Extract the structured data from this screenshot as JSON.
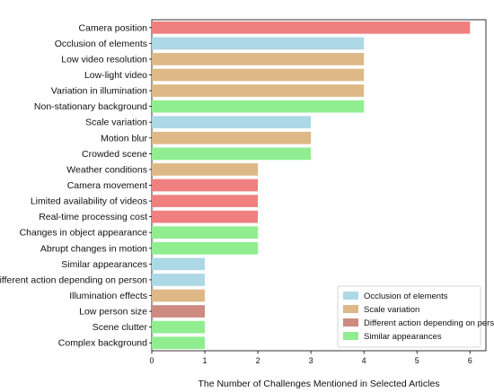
{
  "chart_data": {
    "type": "bar",
    "orientation": "horizontal",
    "xlabel": "The Number of Challenges Mentioned in Selected Articles",
    "xlim": [
      0,
      6.3
    ],
    "xticks": [
      0,
      1,
      2,
      3,
      4,
      5,
      6
    ],
    "grid": false,
    "legend_position": "bottom-right",
    "colors": {
      "blue": "#add8e6",
      "tan": "#deb887",
      "red": "#f08080",
      "green": "#90ee90"
    },
    "legend": [
      {
        "label": "Occlusion of elements",
        "color": "#add8e6"
      },
      {
        "label": "Scale variation",
        "color": "#deb887"
      },
      {
        "label": "Different action depending on person",
        "color": "#cd8a80"
      },
      {
        "label": "Similar appearances",
        "color": "#90ee90"
      }
    ],
    "bars": [
      {
        "category": "Camera position",
        "value": 6,
        "color": "#f08080"
      },
      {
        "category": "Occlusion of elements",
        "value": 4,
        "color": "#add8e6"
      },
      {
        "category": "Low video resolution",
        "value": 4,
        "color": "#deb887"
      },
      {
        "category": "Low-light video",
        "value": 4,
        "color": "#deb887"
      },
      {
        "category": "Variation in illumination",
        "value": 4,
        "color": "#deb887"
      },
      {
        "category": "Non-stationary background",
        "value": 4,
        "color": "#90ee90"
      },
      {
        "category": "Scale variation",
        "value": 3,
        "color": "#add8e6"
      },
      {
        "category": "Motion blur",
        "value": 3,
        "color": "#deb887"
      },
      {
        "category": "Crowded scene",
        "value": 3,
        "color": "#90ee90"
      },
      {
        "category": "Weather conditions",
        "value": 2,
        "color": "#deb887"
      },
      {
        "category": "Camera movement",
        "value": 2,
        "color": "#f08080"
      },
      {
        "category": "Limited availability of videos",
        "value": 2,
        "color": "#f08080"
      },
      {
        "category": "Real-time processing cost",
        "value": 2,
        "color": "#f08080"
      },
      {
        "category": "Changes in object appearance",
        "value": 2,
        "color": "#90ee90"
      },
      {
        "category": "Abrupt changes in motion",
        "value": 2,
        "color": "#90ee90"
      },
      {
        "category": "Similar appearances",
        "value": 1,
        "color": "#add8e6"
      },
      {
        "category": "Different action depending on person",
        "value": 1,
        "color": "#add8e6"
      },
      {
        "category": "Illumination effects",
        "value": 1,
        "color": "#deb887"
      },
      {
        "category": "Low person size",
        "value": 1,
        "color": "#cd8a80"
      },
      {
        "category": "Scene clutter",
        "value": 1,
        "color": "#90ee90"
      },
      {
        "category": "Complex background",
        "value": 1,
        "color": "#90ee90"
      }
    ]
  }
}
